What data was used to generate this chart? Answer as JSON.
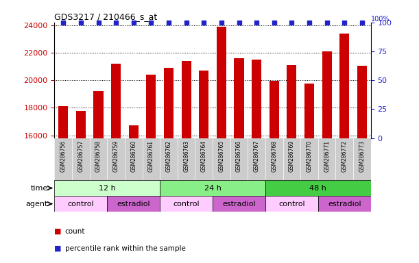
{
  "title": "GDS3217 / 210466_s_at",
  "samples": [
    "GSM286756",
    "GSM286757",
    "GSM286758",
    "GSM286759",
    "GSM286760",
    "GSM286761",
    "GSM286762",
    "GSM286763",
    "GSM286764",
    "GSM286765",
    "GSM286766",
    "GSM286767",
    "GSM286768",
    "GSM286769",
    "GSM286770",
    "GSM286771",
    "GSM286772",
    "GSM286773"
  ],
  "counts": [
    18100,
    17750,
    19200,
    21200,
    16700,
    20400,
    20900,
    21400,
    20700,
    23900,
    21600,
    21500,
    19950,
    21100,
    19750,
    22100,
    23400,
    21050
  ],
  "bar_color": "#cc0000",
  "percentile_color": "#2222cc",
  "ylim_left": [
    15800,
    24200
  ],
  "ylim_right": [
    0,
    100
  ],
  "yticks_left": [
    16000,
    18000,
    20000,
    22000,
    24000
  ],
  "yticks_right": [
    0,
    25,
    50,
    75,
    100
  ],
  "time_groups": [
    {
      "label": "12 h",
      "start": 0,
      "end": 6,
      "color": "#ccffcc"
    },
    {
      "label": "24 h",
      "start": 6,
      "end": 12,
      "color": "#88ee88"
    },
    {
      "label": "48 h",
      "start": 12,
      "end": 18,
      "color": "#44cc44"
    }
  ],
  "agent_groups": [
    {
      "label": "control",
      "start": 0,
      "end": 3,
      "color": "#ffccff"
    },
    {
      "label": "estradiol",
      "start": 3,
      "end": 6,
      "color": "#cc66cc"
    },
    {
      "label": "control",
      "start": 6,
      "end": 9,
      "color": "#ffccff"
    },
    {
      "label": "estradiol",
      "start": 9,
      "end": 12,
      "color": "#cc66cc"
    },
    {
      "label": "control",
      "start": 12,
      "end": 15,
      "color": "#ffccff"
    },
    {
      "label": "estradiol",
      "start": 15,
      "end": 18,
      "color": "#cc66cc"
    }
  ],
  "legend_count_color": "#cc0000",
  "legend_percentile_color": "#2222cc",
  "left_tick_color": "#cc0000",
  "right_tick_color": "#2222cc",
  "xtick_bg": "#cccccc"
}
